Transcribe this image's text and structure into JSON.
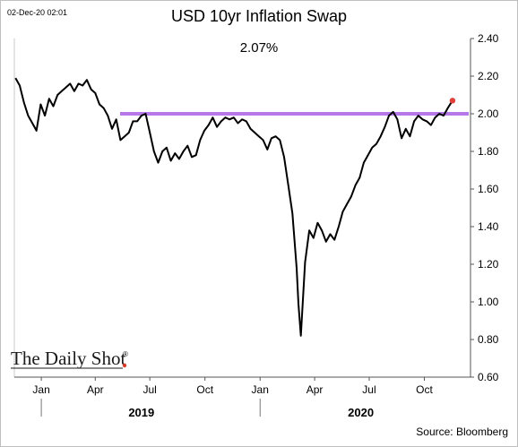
{
  "timestamp": "02-Dec-20 02:01",
  "source": "Source: Bloomberg",
  "logo_text": "The Daily Shot",
  "logo_mark": "®",
  "chart_data": {
    "type": "line",
    "title": "USD 10yr Inflation Swap",
    "subtitle": "2.07%",
    "ylim": [
      0.6,
      2.4
    ],
    "yticks": [
      "2.40",
      "2.20",
      "2.00",
      "1.80",
      "1.60",
      "1.40",
      "1.20",
      "1.00",
      "0.80",
      "0.60"
    ],
    "xlim": [
      "2018-12-01",
      "2020-12-31"
    ],
    "month_ticks": [
      {
        "label": "Jan",
        "date": "2019-01-15"
      },
      {
        "label": "Apr",
        "date": "2019-04-15"
      },
      {
        "label": "Jul",
        "date": "2019-07-15"
      },
      {
        "label": "Oct",
        "date": "2019-10-15"
      },
      {
        "label": "Jan",
        "date": "2020-01-15"
      },
      {
        "label": "Apr",
        "date": "2020-04-15"
      },
      {
        "label": "Jul",
        "date": "2020-07-15"
      },
      {
        "label": "Oct",
        "date": "2020-10-15"
      }
    ],
    "year_labels": [
      {
        "label": "2019",
        "date": "2019-07-01"
      },
      {
        "label": "2020",
        "date": "2020-07-01"
      }
    ],
    "reference_line": {
      "y": 2.0,
      "color": "#b678e8"
    },
    "last_point": {
      "x": "2020-12-01",
      "y": 2.07,
      "color": "#e0403a"
    },
    "line_color": "#000000",
    "series": [
      {
        "x": [
          "2018-12-03",
          "2018-12-10",
          "2018-12-17",
          "2018-12-24",
          "2018-12-31",
          "2019-01-07",
          "2019-01-14",
          "2019-01-21",
          "2019-01-28",
          "2019-02-04",
          "2019-02-11",
          "2019-02-18",
          "2019-02-25",
          "2019-03-04",
          "2019-03-11",
          "2019-03-18",
          "2019-03-25",
          "2019-04-01",
          "2019-04-08",
          "2019-04-15",
          "2019-04-22",
          "2019-04-29",
          "2019-05-06",
          "2019-05-13",
          "2019-05-20",
          "2019-05-27",
          "2019-06-03",
          "2019-06-10",
          "2019-06-17",
          "2019-06-24",
          "2019-07-01",
          "2019-07-08",
          "2019-07-15",
          "2019-07-22",
          "2019-07-29",
          "2019-08-05",
          "2019-08-12",
          "2019-08-19",
          "2019-08-26",
          "2019-09-02",
          "2019-09-09",
          "2019-09-16",
          "2019-09-23",
          "2019-09-30",
          "2019-10-07",
          "2019-10-14",
          "2019-10-21",
          "2019-10-28",
          "2019-11-04",
          "2019-11-11",
          "2019-11-18",
          "2019-11-25",
          "2019-12-02",
          "2019-12-09",
          "2019-12-16",
          "2019-12-23",
          "2019-12-30",
          "2020-01-06",
          "2020-01-13",
          "2020-01-20",
          "2020-01-27",
          "2020-02-03",
          "2020-02-10",
          "2020-02-17",
          "2020-02-24",
          "2020-03-02",
          "2020-03-09",
          "2020-03-16",
          "2020-03-19",
          "2020-03-23",
          "2020-03-30",
          "2020-04-06",
          "2020-04-13",
          "2020-04-20",
          "2020-04-27",
          "2020-05-04",
          "2020-05-11",
          "2020-05-18",
          "2020-05-25",
          "2020-06-01",
          "2020-06-08",
          "2020-06-15",
          "2020-06-22",
          "2020-06-29",
          "2020-07-06",
          "2020-07-13",
          "2020-07-20",
          "2020-07-27",
          "2020-08-03",
          "2020-08-10",
          "2020-08-17",
          "2020-08-24",
          "2020-08-31",
          "2020-09-07",
          "2020-09-14",
          "2020-09-21",
          "2020-09-28",
          "2020-10-05",
          "2020-10-12",
          "2020-10-19",
          "2020-10-26",
          "2020-11-02",
          "2020-11-09",
          "2020-11-16",
          "2020-11-23",
          "2020-12-01"
        ],
        "y": [
          2.19,
          2.15,
          2.06,
          1.99,
          1.95,
          1.91,
          2.05,
          1.99,
          2.08,
          2.04,
          2.1,
          2.12,
          2.14,
          2.16,
          2.12,
          2.16,
          2.15,
          2.18,
          2.13,
          2.11,
          2.05,
          2.03,
          1.99,
          1.92,
          1.97,
          1.86,
          1.88,
          1.9,
          1.96,
          1.96,
          1.99,
          2.0,
          1.9,
          1.8,
          1.74,
          1.8,
          1.82,
          1.75,
          1.79,
          1.76,
          1.8,
          1.83,
          1.77,
          1.78,
          1.86,
          1.91,
          1.94,
          1.98,
          1.93,
          1.96,
          1.98,
          1.97,
          1.98,
          1.95,
          1.97,
          1.96,
          1.92,
          1.9,
          1.88,
          1.86,
          1.81,
          1.87,
          1.88,
          1.86,
          1.77,
          1.62,
          1.47,
          1.18,
          0.99,
          0.82,
          1.21,
          1.38,
          1.34,
          1.42,
          1.38,
          1.32,
          1.36,
          1.33,
          1.4,
          1.48,
          1.52,
          1.56,
          1.62,
          1.66,
          1.74,
          1.78,
          1.82,
          1.84,
          1.88,
          1.93,
          1.99,
          2.01,
          1.97,
          1.87,
          1.92,
          1.88,
          1.96,
          1.99,
          1.97,
          1.96,
          1.94,
          1.98,
          2.0,
          1.99,
          2.03,
          2.07
        ]
      }
    ]
  }
}
